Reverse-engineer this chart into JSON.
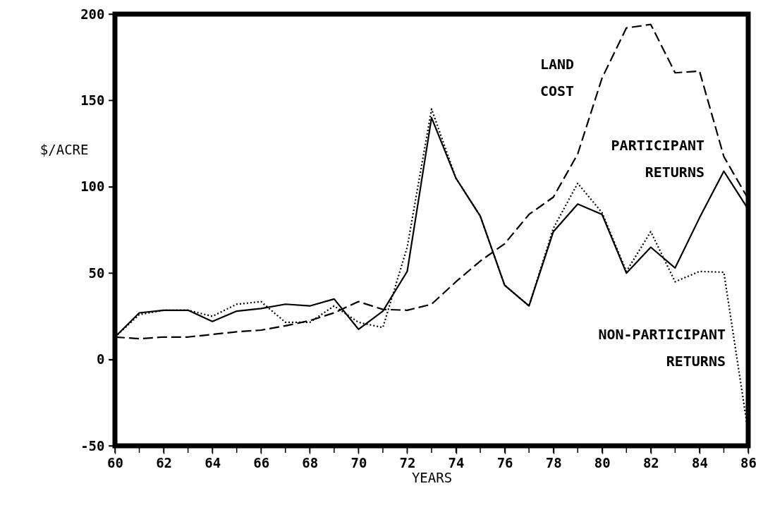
{
  "chart_data": {
    "type": "line",
    "xlabel": "YEARS",
    "ylabel": "$/ACRE",
    "x": [
      60,
      61,
      62,
      63,
      64,
      65,
      66,
      67,
      68,
      69,
      70,
      71,
      72,
      73,
      74,
      75,
      76,
      77,
      78,
      79,
      80,
      81,
      82,
      83,
      84,
      85,
      86
    ],
    "xlim": [
      60,
      86
    ],
    "xticks": [
      60,
      {
        "value": 61,
        "label": null
      },
      62,
      {
        "value": 63,
        "label": null
      },
      64,
      {
        "value": 65,
        "label": null
      },
      66,
      {
        "value": 67,
        "label": null
      },
      68,
      {
        "value": 69,
        "label": null
      },
      70,
      {
        "value": 71,
        "label": null
      },
      72,
      {
        "value": 73,
        "label": null
      },
      74,
      {
        "value": 75,
        "label": null
      },
      76,
      {
        "value": 77,
        "label": null
      },
      78,
      {
        "value": 79,
        "label": null
      },
      80,
      {
        "value": 81,
        "label": null
      },
      82,
      {
        "value": 83,
        "label": null
      },
      84,
      {
        "value": 85,
        "label": null
      },
      86
    ],
    "ylim": [
      -50,
      200
    ],
    "yticks": [
      -50,
      0,
      50,
      100,
      150,
      200
    ],
    "marker": "none",
    "series": [
      {
        "name": "LAND COST",
        "color": "#000000",
        "line_style": "dashed",
        "values": [
          13,
          12,
          13,
          13,
          14.5,
          16,
          17,
          19.5,
          22.5,
          27,
          33.5,
          29,
          28.5,
          32,
          45,
          57,
          67,
          84,
          94,
          119,
          163,
          192,
          194,
          166,
          167,
          117.5,
          93
        ]
      },
      {
        "name": "PARTICIPANT RETURNS",
        "color": "#000000",
        "line_style": "solid",
        "values": [
          13,
          27,
          28.5,
          28.5,
          22,
          28,
          29.5,
          32,
          31,
          35,
          17.5,
          28,
          51,
          140,
          105,
          83,
          43,
          31,
          74,
          90,
          84,
          50,
          65,
          53,
          82,
          109,
          87
        ]
      },
      {
        "name": "NON-PARTICIPANT RETURNS",
        "color": "#000000",
        "line_style": "dotted",
        "values": [
          13,
          26,
          28.5,
          28.5,
          25,
          32,
          33.5,
          21.5,
          21.5,
          31,
          21.5,
          18.5,
          65,
          145,
          105,
          83,
          43,
          31,
          76,
          102,
          85,
          51,
          74,
          45,
          51,
          50.5,
          -42
        ]
      }
    ]
  }
}
